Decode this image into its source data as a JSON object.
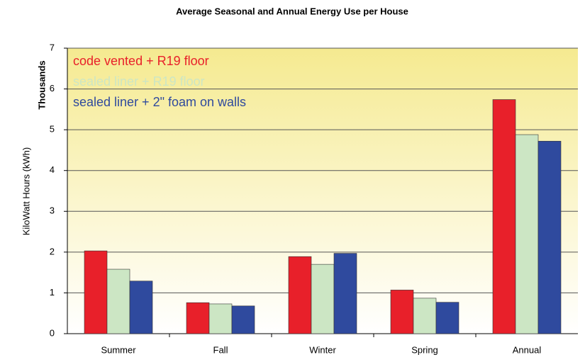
{
  "chart_data": {
    "type": "bar",
    "title": "Average Seasonal and Annual Energy Use per House",
    "y_label": "KiloWatt Hours (kWh)",
    "y_unit_label": "Thousands",
    "categories": [
      "Summer",
      "Fall",
      "Winter",
      "Spring",
      "Annual"
    ],
    "series": [
      {
        "name": "code vented + R19 floor",
        "color": "#e8202a",
        "values": [
          2.03,
          0.76,
          1.89,
          1.07,
          5.74
        ]
      },
      {
        "name": "sealed liner + R19 floor",
        "color": "#cce6c4",
        "values": [
          1.58,
          0.73,
          1.7,
          0.87,
          4.88
        ]
      },
      {
        "name": "sealed liner + 2\" foam on walls",
        "color": "#2f4a9e",
        "values": [
          1.29,
          0.68,
          1.97,
          0.77,
          4.72
        ]
      }
    ],
    "ylim": [
      0,
      7
    ],
    "yticks": [
      0,
      1,
      2,
      3,
      4,
      5,
      6,
      7
    ],
    "grid": true,
    "legend": "upper left"
  }
}
